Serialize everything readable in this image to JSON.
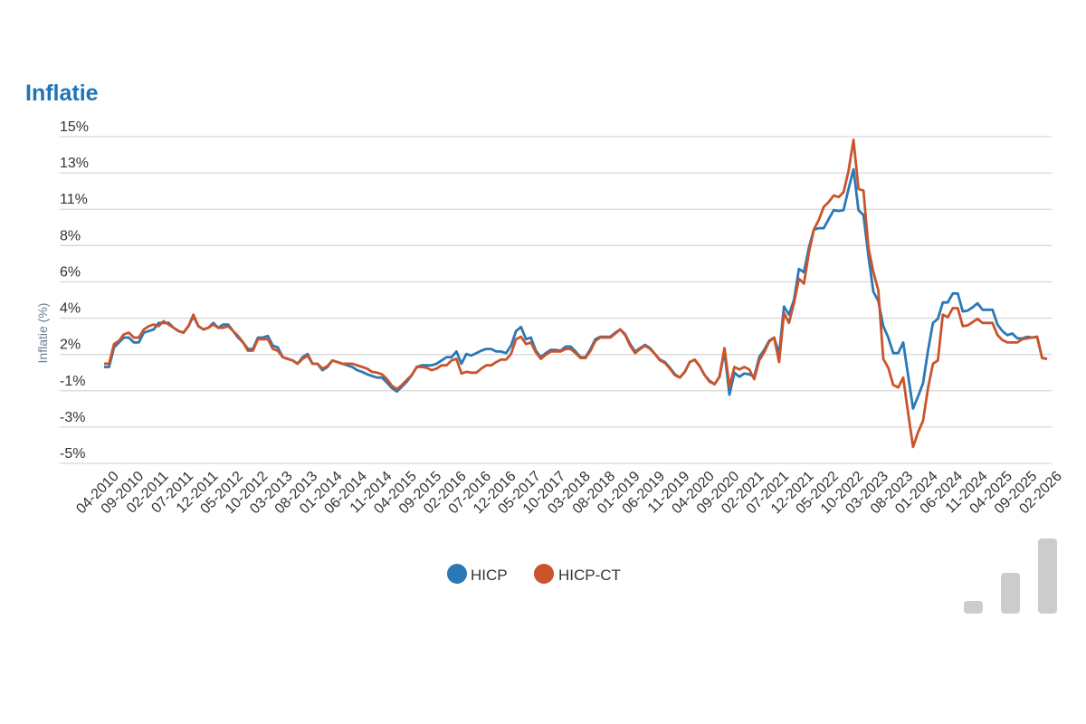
{
  "chart_data": {
    "type": "line",
    "title": "Inflatie",
    "ylabel": "Inflatie (%)",
    "xlabel": "",
    "ylim": [
      -5,
      15
    ],
    "ytick_labels": [
      "-5%",
      "-3%",
      "-1%",
      "2%",
      "4%",
      "6%",
      "8%",
      "11%",
      "13%",
      "15%"
    ],
    "grid": true,
    "legend_position": "bottom",
    "xtick_labels": [
      "04-2010",
      "09-2010",
      "02-2011",
      "07-2011",
      "12-2011",
      "05-2012",
      "10-2012",
      "03-2013",
      "08-2013",
      "01-2014",
      "06-2014",
      "11-2014",
      "04-2015",
      "09-2015",
      "02-2016",
      "07-2016",
      "12-2016",
      "05-2017",
      "10-2017",
      "03-2018",
      "08-2018",
      "01-2019",
      "06-2019",
      "11-2019",
      "04-2020",
      "09-2020",
      "02-2021",
      "07-2021",
      "12-2021",
      "05-2022",
      "10-2022",
      "03-2023",
      "08-2023",
      "01-2024",
      "06-2024",
      "11-2024",
      "04-2025",
      "09-2025",
      "02-2026"
    ],
    "x_first": "04-2010",
    "x_last": "02-2026",
    "series": [
      {
        "name": "HICP",
        "color": "#2b78b6",
        "values": [
          0.9,
          0.9,
          2.1,
          2.4,
          2.7,
          2.7,
          2.4,
          2.4,
          3.0,
          3.1,
          3.2,
          3.6,
          3.6,
          3.6,
          3.3,
          3.1,
          3.0,
          3.4,
          4.0,
          3.4,
          3.2,
          3.3,
          3.6,
          3.3,
          3.5,
          3.5,
          3.1,
          2.7,
          2.4,
          2.0,
          2.0,
          2.7,
          2.7,
          2.8,
          2.2,
          2.1,
          1.5,
          1.4,
          1.3,
          1.1,
          1.5,
          1.7,
          1.1,
          1.1,
          0.7,
          0.9,
          1.3,
          1.2,
          1.1,
          1.0,
          0.9,
          0.7,
          0.6,
          0.45,
          0.35,
          0.25,
          0.25,
          -0.05,
          -0.4,
          -0.6,
          -0.3,
          0.0,
          0.4,
          0.9,
          1.0,
          1.0,
          1.0,
          1.1,
          1.3,
          1.5,
          1.5,
          1.85,
          1.1,
          1.7,
          1.6,
          1.75,
          1.9,
          2.0,
          2.0,
          1.85,
          1.85,
          1.75,
          2.2,
          3.1,
          3.35,
          2.6,
          2.7,
          1.9,
          1.5,
          1.75,
          1.95,
          1.95,
          1.9,
          2.15,
          2.15,
          1.85,
          1.5,
          1.5,
          2.0,
          2.6,
          2.75,
          2.75,
          2.75,
          3.0,
          3.2,
          2.9,
          2.3,
          1.85,
          2.05,
          2.25,
          2.05,
          1.7,
          1.35,
          1.2,
          0.85,
          0.45,
          0.25,
          0.6,
          1.2,
          1.35,
          0.95,
          0.4,
          0.05,
          -0.15,
          0.3,
          1.85,
          -0.8,
          0.55,
          0.3,
          0.5,
          0.45,
          0.3,
          1.5,
          1.95,
          2.5,
          2.7,
          1.7,
          4.6,
          4.1,
          5.0,
          6.9,
          6.7,
          8.2,
          9.3,
          9.4,
          9.4,
          9.95,
          10.5,
          10.45,
          10.5,
          11.8,
          13.0,
          10.5,
          10.2,
          7.7,
          5.5,
          4.95,
          3.4,
          2.7,
          1.75,
          1.75,
          2.4,
          0.4,
          -1.65,
          -0.9,
          -0.1,
          1.9,
          3.6,
          3.85,
          4.85,
          4.85,
          5.4,
          5.4,
          4.3,
          4.35,
          4.55,
          4.8,
          4.4,
          4.4,
          4.4,
          3.5,
          3.1,
          2.85,
          2.95,
          2.65,
          2.65,
          2.75,
          2.7,
          2.75,
          1.45,
          1.4
        ]
      },
      {
        "name": "HICP-CT",
        "color": "#c9542c",
        "values": [
          1.1,
          1.1,
          2.3,
          2.5,
          2.9,
          3.0,
          2.7,
          2.7,
          3.2,
          3.4,
          3.5,
          3.4,
          3.7,
          3.5,
          3.3,
          3.1,
          3.0,
          3.4,
          4.1,
          3.4,
          3.2,
          3.3,
          3.5,
          3.3,
          3.3,
          3.4,
          3.1,
          2.8,
          2.4,
          1.9,
          1.9,
          2.6,
          2.6,
          2.6,
          2.0,
          1.9,
          1.5,
          1.4,
          1.3,
          1.1,
          1.4,
          1.6,
          1.1,
          1.1,
          0.8,
          0.95,
          1.3,
          1.2,
          1.1,
          1.1,
          1.1,
          1.0,
          0.9,
          0.8,
          0.6,
          0.55,
          0.45,
          0.15,
          -0.25,
          -0.45,
          -0.2,
          0.1,
          0.4,
          0.9,
          0.9,
          0.85,
          0.7,
          0.8,
          1.0,
          1.0,
          1.3,
          1.4,
          0.5,
          0.6,
          0.55,
          0.55,
          0.8,
          1.0,
          1.0,
          1.2,
          1.35,
          1.35,
          1.7,
          2.6,
          2.75,
          2.3,
          2.4,
          1.8,
          1.4,
          1.65,
          1.85,
          1.85,
          1.85,
          2.0,
          2.0,
          1.75,
          1.45,
          1.45,
          1.9,
          2.5,
          2.7,
          2.7,
          2.7,
          2.95,
          3.2,
          2.85,
          2.2,
          1.75,
          2.0,
          2.2,
          2.0,
          1.7,
          1.3,
          1.15,
          0.8,
          0.4,
          0.25,
          0.6,
          1.2,
          1.35,
          0.95,
          0.4,
          0.0,
          -0.15,
          0.3,
          2.05,
          -0.3,
          0.9,
          0.75,
          0.9,
          0.75,
          0.15,
          1.3,
          1.8,
          2.45,
          2.7,
          1.2,
          4.2,
          3.6,
          4.8,
          6.3,
          6.0,
          7.9,
          9.3,
          9.9,
          10.7,
          11.0,
          11.4,
          11.3,
          11.6,
          12.9,
          14.8,
          11.8,
          11.7,
          8.2,
          6.7,
          5.6,
          1.4,
          0.85,
          -0.2,
          -0.35,
          0.25,
          -1.9,
          -4.0,
          -3.1,
          -2.4,
          -0.4,
          1.1,
          1.3,
          4.1,
          3.95,
          4.5,
          4.5,
          3.4,
          3.45,
          3.65,
          3.85,
          3.6,
          3.6,
          3.6,
          2.85,
          2.55,
          2.4,
          2.4,
          2.4,
          2.6,
          2.65,
          2.7,
          2.75,
          1.45,
          1.4
        ]
      }
    ]
  },
  "colors": {
    "title": "#1f74b8",
    "grid": "#d9d9d9",
    "icon": "#cccccc"
  },
  "icons": {
    "corner": "bar-chart-icon"
  }
}
